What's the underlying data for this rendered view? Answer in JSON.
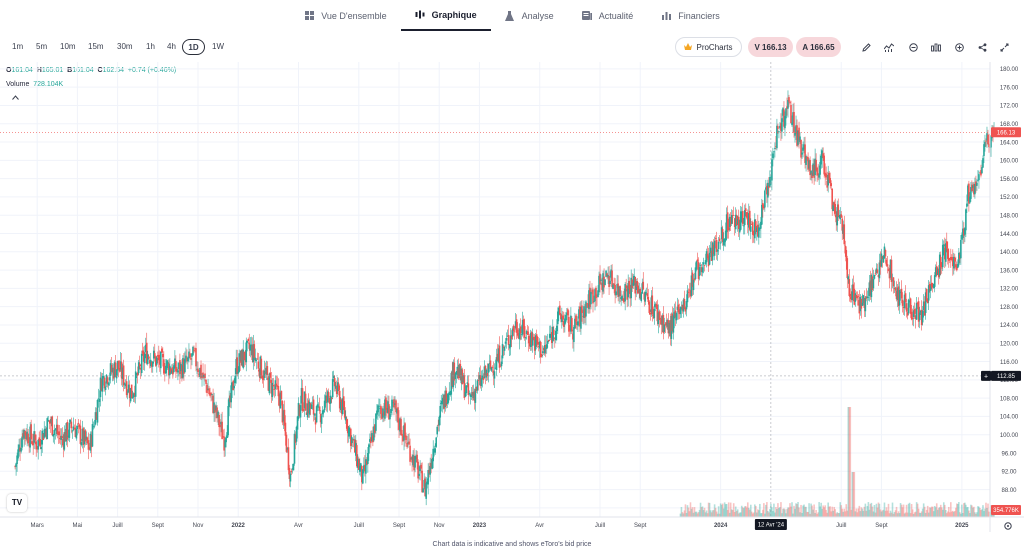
{
  "nav": {
    "tabs": [
      {
        "label": "Vue D'ensemble",
        "icon": "grid-icon"
      },
      {
        "label": "Graphique",
        "icon": "candles-icon",
        "active": true
      },
      {
        "label": "Analyse",
        "icon": "flask-icon"
      },
      {
        "label": "Actualité",
        "icon": "news-icon"
      },
      {
        "label": "Financiers",
        "icon": "bars-icon"
      }
    ]
  },
  "toolbar": {
    "timeframes": [
      "1m",
      "5m",
      "10m",
      "15m",
      "30m",
      "1h",
      "4h",
      "1D",
      "1W"
    ],
    "active_timeframe": "1D",
    "prochart_label": "ProCharts",
    "sell_label": "V 166.13",
    "buy_label": "A 166.65",
    "icons": [
      "pencil-icon",
      "indicators-icon",
      "compare-icon",
      "chart-type-icon",
      "add-icon",
      "share-icon",
      "fullscreen-icon"
    ]
  },
  "legend": {
    "o_key": "O",
    "o_val": "161.04",
    "h_key": "H",
    "h_val": "165.01",
    "b_key": "B",
    "b_val": "161.04",
    "c_key": "C",
    "c_val": "162.54",
    "change": "+0.74 (+0.46%)",
    "volume_label": "Volume",
    "volume_val": "728.104K"
  },
  "footer": "Chart data is indicative and shows eToro's bid price",
  "logo_text": "TV",
  "chart_data": {
    "type": "candlestick",
    "y_ticks": [
      84,
      88,
      92,
      96,
      100,
      104,
      108,
      112,
      116,
      120,
      124,
      128,
      132,
      136,
      140,
      144,
      148,
      152,
      156,
      160,
      164,
      168,
      172,
      176,
      180
    ],
    "y_tick_labels": [
      "84.00",
      "88.00",
      "92.00",
      "96.00",
      "100.00",
      "104.00",
      "108.00",
      "112.00",
      "116.00",
      "120.00",
      "124.00",
      "128.00",
      "132.00",
      "136.00",
      "140.00",
      "144.00",
      "148.00",
      "152.00",
      "156.00",
      "160.00",
      "164.00",
      "168.00",
      "172.00",
      "176.00",
      "180.00"
    ],
    "ylim": [
      82,
      181.5
    ],
    "x_labels": [
      {
        "t": 2,
        "label": "Mars"
      },
      {
        "t": 4,
        "label": "Mai"
      },
      {
        "t": 6,
        "label": "Juill"
      },
      {
        "t": 8,
        "label": "Sept"
      },
      {
        "t": 10,
        "label": "Nov"
      },
      {
        "t": 12,
        "label": "2022",
        "bold": true
      },
      {
        "t": 15,
        "label": "Avr"
      },
      {
        "t": 18,
        "label": "Juill"
      },
      {
        "t": 20,
        "label": "Sept"
      },
      {
        "t": 22,
        "label": "Nov"
      },
      {
        "t": 24,
        "label": "2023",
        "bold": true
      },
      {
        "t": 27,
        "label": "Avr"
      },
      {
        "t": 30,
        "label": "Juill"
      },
      {
        "t": 32,
        "label": "Sept"
      },
      {
        "t": 36,
        "label": "2024",
        "bold": true
      },
      {
        "t": 42,
        "label": "Juill"
      },
      {
        "t": 44,
        "label": "Sept"
      },
      {
        "t": 48,
        "label": "2025",
        "bold": true
      }
    ],
    "xlim": [
      0.15,
      49.4
    ],
    "price_path": [
      [
        0.9,
        93
      ],
      [
        1.3,
        101
      ],
      [
        2,
        98
      ],
      [
        2.6,
        103
      ],
      [
        3.2,
        99
      ],
      [
        3.8,
        102
      ],
      [
        4.6,
        97
      ],
      [
        5.2,
        112
      ],
      [
        6,
        115
      ],
      [
        6.7,
        109
      ],
      [
        7.4,
        118
      ],
      [
        8,
        116
      ],
      [
        9,
        114
      ],
      [
        9.8,
        117
      ],
      [
        10.5,
        110
      ],
      [
        11.3,
        99
      ],
      [
        11.9,
        115
      ],
      [
        12.6,
        119
      ],
      [
        13.3,
        113
      ],
      [
        14.1,
        108
      ],
      [
        14.6,
        91
      ],
      [
        15.1,
        108
      ],
      [
        16,
        104
      ],
      [
        16.8,
        111
      ],
      [
        17.4,
        103
      ],
      [
        18.2,
        90
      ],
      [
        19,
        106
      ],
      [
        19.8,
        105
      ],
      [
        20.6,
        96
      ],
      [
        21.3,
        88
      ],
      [
        22,
        104
      ],
      [
        22.8,
        115
      ],
      [
        23.5,
        108
      ],
      [
        24.3,
        113
      ],
      [
        25,
        117
      ],
      [
        25.8,
        124
      ],
      [
        26.6,
        121
      ],
      [
        27.2,
        118
      ],
      [
        28,
        126
      ],
      [
        28.7,
        123
      ],
      [
        29.5,
        130
      ],
      [
        30.4,
        135
      ],
      [
        31,
        131
      ],
      [
        31.8,
        133
      ],
      [
        32.6,
        128
      ],
      [
        33.4,
        123
      ],
      [
        34.1,
        127
      ],
      [
        34.8,
        136
      ],
      [
        35.6,
        140
      ],
      [
        36.3,
        146
      ],
      [
        37.2,
        148
      ],
      [
        37.8,
        144
      ],
      [
        38.4,
        156
      ],
      [
        38.9,
        168
      ],
      [
        39.4,
        171
      ],
      [
        39.9,
        164
      ],
      [
        40.5,
        158
      ],
      [
        41.1,
        160
      ],
      [
        41.6,
        150
      ],
      [
        42.1,
        144
      ],
      [
        42.4,
        132
      ],
      [
        42.9,
        128
      ],
      [
        43.5,
        133
      ],
      [
        44.2,
        140
      ],
      [
        44.8,
        130
      ],
      [
        45.4,
        128
      ],
      [
        46,
        126
      ],
      [
        46.6,
        134
      ],
      [
        47.2,
        141
      ],
      [
        47.8,
        137
      ],
      [
        48.3,
        152
      ],
      [
        48.9,
        158
      ],
      [
        49.3,
        165
      ],
      [
        49.6,
        166
      ]
    ],
    "price_range": {
      "last": 166.13,
      "last_label": "166.13",
      "cursor": 112.85,
      "cursor_label": "112.85"
    },
    "crosshair": {
      "t": 38.5,
      "label": "12 Avr '24"
    },
    "volume_badge": "354.776K",
    "colors": {
      "up": "#26a69a",
      "down": "#ef5350",
      "grid": "#f0f3fa",
      "axis_text": "#434651"
    }
  }
}
